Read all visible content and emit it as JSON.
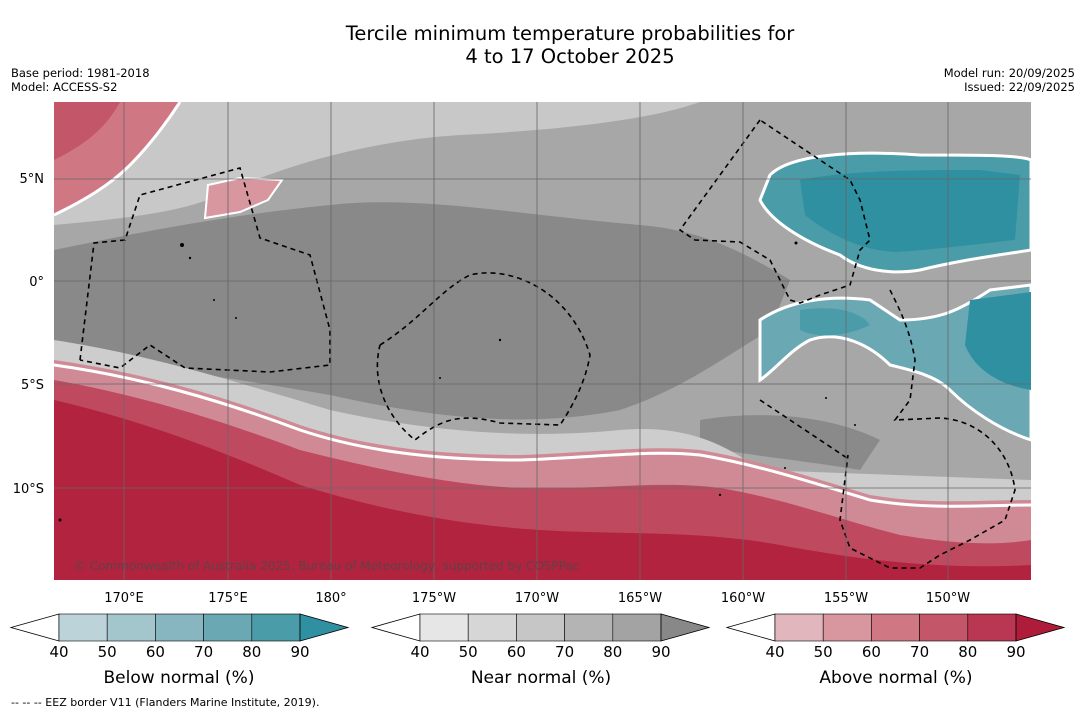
{
  "title": {
    "line1": "Tercile minimum temperature probabilities for",
    "line2": "4 to 17 October 2025"
  },
  "meta": {
    "base_period": "Base period: 1981-2018",
    "model": "Model: ACCESS-S2",
    "model_run": "Model run: 20/09/2025",
    "issued": "Issued: 22/09/2025"
  },
  "map": {
    "lat_labels": [
      "5°N",
      "0°",
      "5°S",
      "10°S"
    ],
    "lon_labels": [
      "170°E",
      "175°E",
      "180°",
      "175°W",
      "170°W",
      "165°W",
      "160°W",
      "155°W",
      "150°W"
    ],
    "copyright": "© Commonwealth of Australia 2025, Bureau of Meteorology, supported by COSPPac"
  },
  "colorbars": {
    "below": {
      "caption": "Below normal (%)",
      "ticks": [
        "40",
        "50",
        "60",
        "70",
        "80",
        "90"
      ],
      "colors": [
        "#bcd3d9",
        "#a3c5cc",
        "#88b6c0",
        "#6aa8b4",
        "#4b9ca9",
        "#2e90a0"
      ]
    },
    "near": {
      "caption": "Near normal (%)",
      "ticks": [
        "40",
        "50",
        "60",
        "70",
        "80",
        "90"
      ],
      "colors": [
        "#e6e6e6",
        "#d6d6d6",
        "#c6c6c6",
        "#b4b4b4",
        "#a3a3a3",
        "#888888"
      ]
    },
    "above": {
      "caption": "Above normal (%)",
      "ticks": [
        "40",
        "50",
        "60",
        "70",
        "80",
        "90"
      ],
      "colors": [
        "#e1b7bd",
        "#d8969f",
        "#cf7884",
        "#c45669",
        "#b93752",
        "#ae1c3a"
      ]
    }
  },
  "footnote": "-- -- -- EEZ border V11 (Flanders Marine Institute, 2019)."
}
